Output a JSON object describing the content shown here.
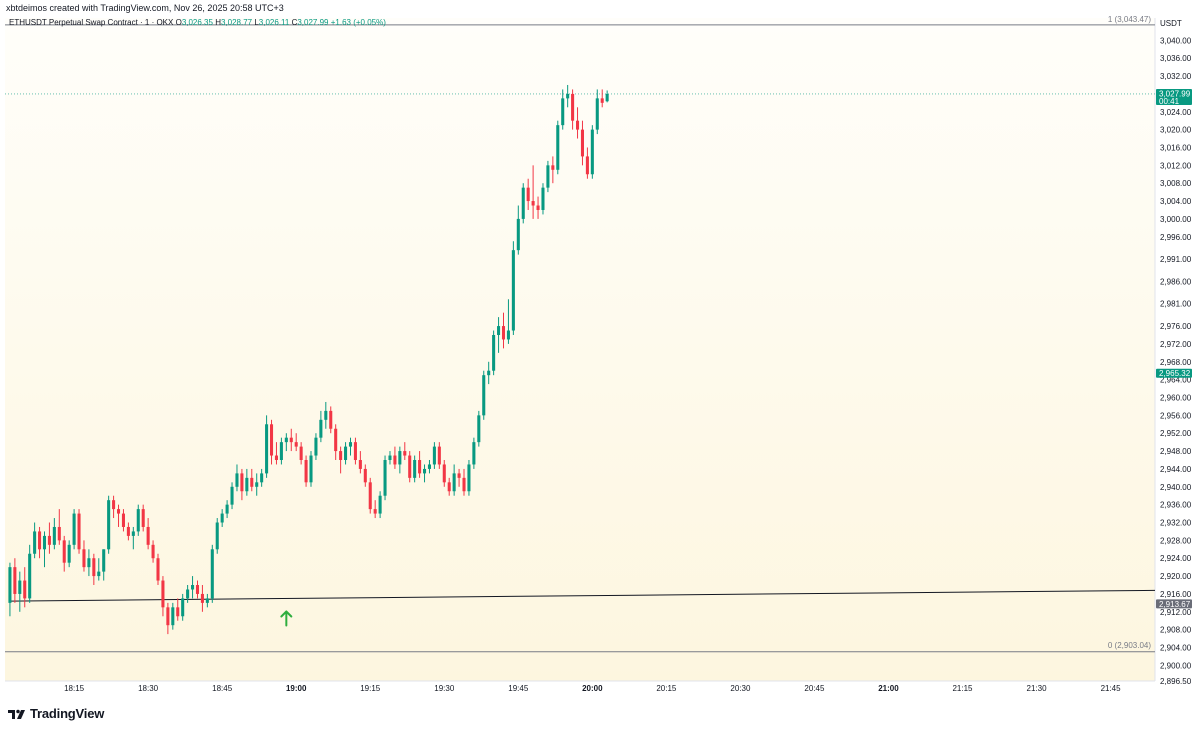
{
  "caption": "xbtdeimos created with TradingView.com, Nov 26, 2025 20:58 UTC+3",
  "brand": {
    "name": "TradingView"
  },
  "colors": {
    "up": "#089981",
    "down": "#f23645",
    "grid_label": "#131722",
    "bg_top": "#fffefa",
    "bg_bottom": "#fdf6df",
    "last_price_bg": "#089981",
    "horizontal_line_label_bg": "#6a6d78",
    "arrow": "#2fae3f"
  },
  "chart_data": {
    "type": "candlestick",
    "symbol_line": {
      "name": "ETHUSDT Perpetual Swap Contract · 1 · OKX",
      "open_label": "O",
      "open": "3,026.35",
      "high_label": "H",
      "high": "3,028.77",
      "low_label": "L",
      "low": "3,026.11",
      "close_label": "C",
      "close": "3,027.99",
      "change": "+1.63 (+0.05%)"
    },
    "currency_label": "USDT",
    "y_ticks": [
      "3,040.00",
      "3,036.00",
      "3,032.00",
      "3,028.00",
      "3,024.00",
      "3,020.00",
      "3,016.00",
      "3,012.00",
      "3,008.00",
      "3,004.00",
      "3,000.00",
      "2,996.00",
      "2,991.00",
      "2,986.00",
      "2,981.00",
      "2,976.00",
      "2,972.00",
      "2,968.00",
      "2,964.00",
      "2,960.00",
      "2,956.00",
      "2,952.00",
      "2,948.00",
      "2,944.00",
      "2,940.00",
      "2,936.00",
      "2,932.00",
      "2,928.00",
      "2,924.00",
      "2,920.00",
      "2,916.00",
      "2,912.00",
      "2,908.00",
      "2,904.00",
      "2,900.00",
      "2,896.50"
    ],
    "y_tick_values": [
      3040,
      3036,
      3032,
      3028,
      3024,
      3020,
      3016,
      3012,
      3008,
      3004,
      3000,
      2996,
      2991,
      2986,
      2981,
      2976,
      2972,
      2968,
      2964,
      2960,
      2956,
      2952,
      2948,
      2944,
      2940,
      2936,
      2932,
      2928,
      2924,
      2920,
      2916,
      2912,
      2908,
      2904,
      2900,
      2896.5
    ],
    "x_ticks": [
      {
        "label": "18:15",
        "minute": 1095,
        "bold": false
      },
      {
        "label": "18:30",
        "minute": 1110,
        "bold": false
      },
      {
        "label": "18:45",
        "minute": 1125,
        "bold": false
      },
      {
        "label": "19:00",
        "minute": 1140,
        "bold": true
      },
      {
        "label": "19:15",
        "minute": 1155,
        "bold": false
      },
      {
        "label": "19:30",
        "minute": 1170,
        "bold": false
      },
      {
        "label": "19:45",
        "minute": 1185,
        "bold": false
      },
      {
        "label": "20:00",
        "minute": 1200,
        "bold": true
      },
      {
        "label": "20:15",
        "minute": 1215,
        "bold": false
      },
      {
        "label": "20:30",
        "minute": 1230,
        "bold": false
      },
      {
        "label": "20:45",
        "minute": 1245,
        "bold": false
      },
      {
        "label": "21:00",
        "minute": 1260,
        "bold": true
      },
      {
        "label": "21:15",
        "minute": 1275,
        "bold": false
      },
      {
        "label": "21:30",
        "minute": 1290,
        "bold": false
      },
      {
        "label": "21:45",
        "minute": 1305,
        "bold": false
      }
    ],
    "candle_minute_start": 1082,
    "candles": [
      {
        "o": 2914,
        "h": 2923,
        "l": 2911,
        "c": 2922
      },
      {
        "o": 2922,
        "h": 2924,
        "l": 2914,
        "c": 2916
      },
      {
        "o": 2916,
        "h": 2921,
        "l": 2912,
        "c": 2919
      },
      {
        "o": 2919,
        "h": 2922,
        "l": 2913,
        "c": 2915
      },
      {
        "o": 2915,
        "h": 2927,
        "l": 2914,
        "c": 2925
      },
      {
        "o": 2925,
        "h": 2932,
        "l": 2924,
        "c": 2930
      },
      {
        "o": 2930,
        "h": 2931,
        "l": 2924,
        "c": 2926
      },
      {
        "o": 2926,
        "h": 2930,
        "l": 2922,
        "c": 2929
      },
      {
        "o": 2929,
        "h": 2932,
        "l": 2925,
        "c": 2927
      },
      {
        "o": 2927,
        "h": 2933,
        "l": 2926,
        "c": 2931
      },
      {
        "o": 2931,
        "h": 2935,
        "l": 2927,
        "c": 2928
      },
      {
        "o": 2928,
        "h": 2929,
        "l": 2921,
        "c": 2923
      },
      {
        "o": 2923,
        "h": 2928,
        "l": 2922,
        "c": 2927
      },
      {
        "o": 2927,
        "h": 2935,
        "l": 2926,
        "c": 2934
      },
      {
        "o": 2934,
        "h": 2935,
        "l": 2925,
        "c": 2926
      },
      {
        "o": 2926,
        "h": 2928,
        "l": 2921,
        "c": 2922
      },
      {
        "o": 2922,
        "h": 2926,
        "l": 2920,
        "c": 2924
      },
      {
        "o": 2924,
        "h": 2925,
        "l": 2918,
        "c": 2920
      },
      {
        "o": 2920,
        "h": 2924,
        "l": 2919,
        "c": 2921
      },
      {
        "o": 2921,
        "h": 2926,
        "l": 2919,
        "c": 2926
      },
      {
        "o": 2926,
        "h": 2938,
        "l": 2925,
        "c": 2937
      },
      {
        "o": 2937,
        "h": 2938,
        "l": 2933,
        "c": 2935
      },
      {
        "o": 2935,
        "h": 2936,
        "l": 2931,
        "c": 2934
      },
      {
        "o": 2934,
        "h": 2935,
        "l": 2930,
        "c": 2931
      },
      {
        "o": 2931,
        "h": 2932,
        "l": 2928,
        "c": 2929
      },
      {
        "o": 2929,
        "h": 2931,
        "l": 2926,
        "c": 2930
      },
      {
        "o": 2930,
        "h": 2936,
        "l": 2929,
        "c": 2935
      },
      {
        "o": 2935,
        "h": 2936,
        "l": 2930,
        "c": 2931
      },
      {
        "o": 2931,
        "h": 2933,
        "l": 2926,
        "c": 2927
      },
      {
        "o": 2927,
        "h": 2928,
        "l": 2923,
        "c": 2924
      },
      {
        "o": 2924,
        "h": 2925,
        "l": 2918,
        "c": 2919
      },
      {
        "o": 2919,
        "h": 2920,
        "l": 2911,
        "c": 2913
      },
      {
        "o": 2913,
        "h": 2914,
        "l": 2907,
        "c": 2909
      },
      {
        "o": 2909,
        "h": 2914,
        "l": 2908,
        "c": 2913
      },
      {
        "o": 2913,
        "h": 2915,
        "l": 2910,
        "c": 2911
      },
      {
        "o": 2911,
        "h": 2916,
        "l": 2910,
        "c": 2915
      },
      {
        "o": 2915,
        "h": 2918,
        "l": 2914,
        "c": 2917
      },
      {
        "o": 2917,
        "h": 2920,
        "l": 2915,
        "c": 2918
      },
      {
        "o": 2918,
        "h": 2919,
        "l": 2915,
        "c": 2916
      },
      {
        "o": 2916,
        "h": 2918,
        "l": 2912,
        "c": 2914
      },
      {
        "o": 2914,
        "h": 2916,
        "l": 2913,
        "c": 2915
      },
      {
        "o": 2915,
        "h": 2927,
        "l": 2914,
        "c": 2926
      },
      {
        "o": 2926,
        "h": 2933,
        "l": 2925,
        "c": 2932
      },
      {
        "o": 2932,
        "h": 2935,
        "l": 2931,
        "c": 2934
      },
      {
        "o": 2934,
        "h": 2937,
        "l": 2933,
        "c": 2936
      },
      {
        "o": 2936,
        "h": 2941,
        "l": 2935,
        "c": 2940
      },
      {
        "o": 2940,
        "h": 2945,
        "l": 2939,
        "c": 2943
      },
      {
        "o": 2943,
        "h": 2944,
        "l": 2937,
        "c": 2939
      },
      {
        "o": 2939,
        "h": 2944,
        "l": 2938,
        "c": 2942
      },
      {
        "o": 2942,
        "h": 2944,
        "l": 2939,
        "c": 2940
      },
      {
        "o": 2940,
        "h": 2943,
        "l": 2938,
        "c": 2941
      },
      {
        "o": 2941,
        "h": 2944,
        "l": 2940,
        "c": 2943
      },
      {
        "o": 2943,
        "h": 2956,
        "l": 2942,
        "c": 2954
      },
      {
        "o": 2954,
        "h": 2955,
        "l": 2945,
        "c": 2947
      },
      {
        "o": 2947,
        "h": 2950,
        "l": 2945,
        "c": 2946
      },
      {
        "o": 2946,
        "h": 2951,
        "l": 2945,
        "c": 2950
      },
      {
        "o": 2950,
        "h": 2952,
        "l": 2948,
        "c": 2951
      },
      {
        "o": 2951,
        "h": 2953,
        "l": 2948,
        "c": 2950
      },
      {
        "o": 2950,
        "h": 2952,
        "l": 2948,
        "c": 2949
      },
      {
        "o": 2949,
        "h": 2950,
        "l": 2945,
        "c": 2946
      },
      {
        "o": 2946,
        "h": 2947,
        "l": 2940,
        "c": 2941
      },
      {
        "o": 2941,
        "h": 2948,
        "l": 2940,
        "c": 2947
      },
      {
        "o": 2947,
        "h": 2952,
        "l": 2946,
        "c": 2951
      },
      {
        "o": 2951,
        "h": 2957,
        "l": 2950,
        "c": 2955
      },
      {
        "o": 2955,
        "h": 2959,
        "l": 2953,
        "c": 2957
      },
      {
        "o": 2957,
        "h": 2958,
        "l": 2952,
        "c": 2953
      },
      {
        "o": 2953,
        "h": 2954,
        "l": 2946,
        "c": 2948
      },
      {
        "o": 2948,
        "h": 2949,
        "l": 2943,
        "c": 2946
      },
      {
        "o": 2946,
        "h": 2950,
        "l": 2945,
        "c": 2949
      },
      {
        "o": 2949,
        "h": 2951,
        "l": 2947,
        "c": 2950
      },
      {
        "o": 2950,
        "h": 2951,
        "l": 2945,
        "c": 2946
      },
      {
        "o": 2946,
        "h": 2948,
        "l": 2943,
        "c": 2944
      },
      {
        "o": 2944,
        "h": 2945,
        "l": 2940,
        "c": 2941
      },
      {
        "o": 2941,
        "h": 2942,
        "l": 2934,
        "c": 2935
      },
      {
        "o": 2935,
        "h": 2937,
        "l": 2933,
        "c": 2934
      },
      {
        "o": 2934,
        "h": 2939,
        "l": 2933,
        "c": 2938
      },
      {
        "o": 2938,
        "h": 2947,
        "l": 2937,
        "c": 2946
      },
      {
        "o": 2946,
        "h": 2948,
        "l": 2945,
        "c": 2947
      },
      {
        "o": 2947,
        "h": 2949,
        "l": 2944,
        "c": 2945
      },
      {
        "o": 2945,
        "h": 2949,
        "l": 2943,
        "c": 2948
      },
      {
        "o": 2948,
        "h": 2950,
        "l": 2946,
        "c": 2947
      },
      {
        "o": 2947,
        "h": 2948,
        "l": 2941,
        "c": 2942
      },
      {
        "o": 2942,
        "h": 2947,
        "l": 2941,
        "c": 2946
      },
      {
        "o": 2946,
        "h": 2948,
        "l": 2942,
        "c": 2943
      },
      {
        "o": 2943,
        "h": 2945,
        "l": 2941,
        "c": 2944
      },
      {
        "o": 2944,
        "h": 2946,
        "l": 2943,
        "c": 2945
      },
      {
        "o": 2945,
        "h": 2950,
        "l": 2944,
        "c": 2949
      },
      {
        "o": 2949,
        "h": 2950,
        "l": 2944,
        "c": 2945
      },
      {
        "o": 2945,
        "h": 2946,
        "l": 2940,
        "c": 2941
      },
      {
        "o": 2941,
        "h": 2942,
        "l": 2938,
        "c": 2939
      },
      {
        "o": 2939,
        "h": 2945,
        "l": 2938,
        "c": 2943
      },
      {
        "o": 2943,
        "h": 2944,
        "l": 2940,
        "c": 2942
      },
      {
        "o": 2942,
        "h": 2944,
        "l": 2938,
        "c": 2939
      },
      {
        "o": 2939,
        "h": 2946,
        "l": 2938,
        "c": 2945
      },
      {
        "o": 2945,
        "h": 2951,
        "l": 2944,
        "c": 2950
      },
      {
        "o": 2950,
        "h": 2957,
        "l": 2949,
        "c": 2956
      },
      {
        "o": 2956,
        "h": 2966,
        "l": 2955,
        "c": 2965
      },
      {
        "o": 2965,
        "h": 2968,
        "l": 2963,
        "c": 2966
      },
      {
        "o": 2966,
        "h": 2975,
        "l": 2965,
        "c": 2974
      },
      {
        "o": 2974,
        "h": 2978,
        "l": 2970,
        "c": 2976
      },
      {
        "o": 2976,
        "h": 2979,
        "l": 2971,
        "c": 2973
      },
      {
        "o": 2973,
        "h": 2982,
        "l": 2972,
        "c": 2975
      },
      {
        "o": 2975,
        "h": 2995,
        "l": 2974,
        "c": 2993
      },
      {
        "o": 2993,
        "h": 3003,
        "l": 2992,
        "c": 3000
      },
      {
        "o": 3000,
        "h": 3008,
        "l": 2999,
        "c": 3007
      },
      {
        "o": 3007,
        "h": 3009,
        "l": 3002,
        "c": 3004
      },
      {
        "o": 3004,
        "h": 3012,
        "l": 3000,
        "c": 3003
      },
      {
        "o": 3003,
        "h": 3005,
        "l": 3000,
        "c": 3002
      },
      {
        "o": 3002,
        "h": 3008,
        "l": 3001,
        "c": 3007
      },
      {
        "o": 3007,
        "h": 3013,
        "l": 3006,
        "c": 3012
      },
      {
        "o": 3012,
        "h": 3014,
        "l": 3008,
        "c": 3011
      },
      {
        "o": 3011,
        "h": 3022,
        "l": 3010,
        "c": 3021
      },
      {
        "o": 3021,
        "h": 3029,
        "l": 3020,
        "c": 3027
      },
      {
        "o": 3027,
        "h": 3030,
        "l": 3025,
        "c": 3028
      },
      {
        "o": 3028,
        "h": 3029,
        "l": 3020,
        "c": 3022
      },
      {
        "o": 3022,
        "h": 3025,
        "l": 3018,
        "c": 3020
      },
      {
        "o": 3020,
        "h": 3022,
        "l": 3012,
        "c": 3014
      },
      {
        "o": 3014,
        "h": 3016,
        "l": 3009,
        "c": 3010
      },
      {
        "o": 3010,
        "h": 3021,
        "l": 3009,
        "c": 3020
      },
      {
        "o": 3020,
        "h": 3029,
        "l": 3019,
        "c": 3027
      },
      {
        "o": 3027,
        "h": 3029,
        "l": 3025,
        "c": 3026
      },
      {
        "o": 3026.35,
        "h": 3028.77,
        "l": 3026.11,
        "c": 3027.99
      }
    ],
    "last_price": {
      "value": 3027.99,
      "label": "3,027.99",
      "countdown": "00:41"
    },
    "marker_label": {
      "value": 2965.32,
      "label": "2,965.32"
    },
    "trendline": {
      "start_minute": 1082,
      "start_value": 2914.4,
      "end_minute": 1313,
      "end_value": 2916.8,
      "label_value": 2913.67,
      "label": "2,913.67"
    },
    "fib_top": {
      "value": 3043.47,
      "label": "1 (3,043.47)"
    },
    "fib_bottom": {
      "value": 2903.04,
      "label": "0 (2,903.04)"
    },
    "arrow_marker": {
      "minute": 1138,
      "value": 2910.5
    },
    "y_range": [
      2896.5,
      3045
    ],
    "x_range_minutes": [
      1081,
      1314
    ]
  }
}
